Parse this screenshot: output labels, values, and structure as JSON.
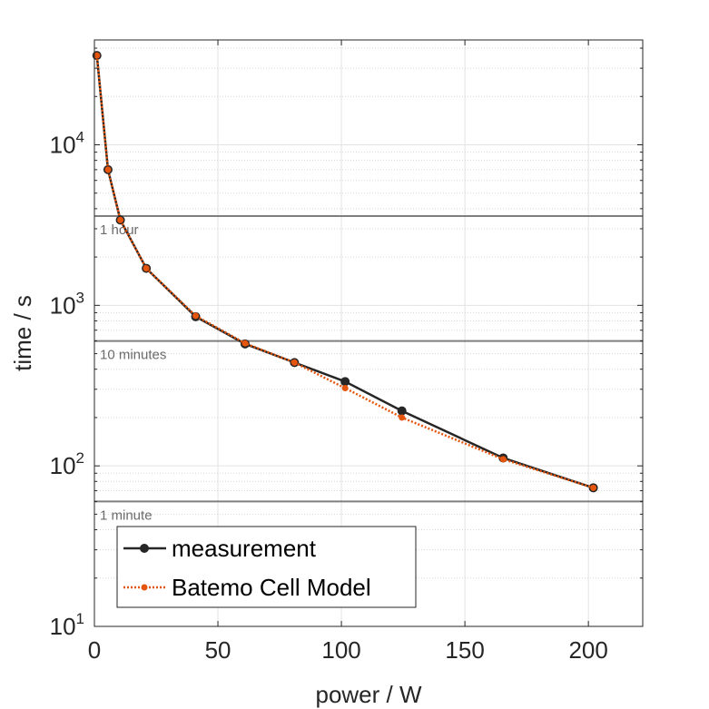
{
  "chart_data": {
    "type": "line",
    "xlabel": "power / W",
    "ylabel": "time / s",
    "xlim": [
      0,
      222
    ],
    "ylim": [
      10,
      45000
    ],
    "yscale": "log",
    "grid": true,
    "minor_grid": true,
    "x_ticks": [
      0,
      50,
      100,
      150,
      200
    ],
    "y_ticks": [
      {
        "value": 10,
        "base": "10",
        "exp": "1"
      },
      {
        "value": 100,
        "base": "10",
        "exp": "2"
      },
      {
        "value": 1000,
        "base": "10",
        "exp": "3"
      },
      {
        "value": 10000,
        "base": "10",
        "exp": "4"
      }
    ],
    "legend_position": "bottom-left",
    "series": [
      {
        "name": "measurement",
        "color": "#262626",
        "line_style": "solid",
        "marker": "circle",
        "x": [
          1,
          5.5,
          10.5,
          21,
          41,
          61,
          81,
          101.5,
          124.5,
          165.5,
          202
        ],
        "y": [
          36000,
          7000,
          3400,
          1700,
          850,
          575,
          440,
          335,
          220,
          112,
          73
        ]
      },
      {
        "name": "Batemo Cell Model",
        "color": "#e6550d",
        "line_style": "dotted",
        "marker": "dot",
        "x": [
          1,
          5.5,
          10.5,
          21,
          41,
          61,
          81,
          101.5,
          124.5,
          165.5,
          202
        ],
        "y": [
          36000,
          7000,
          3400,
          1700,
          860,
          580,
          440,
          305,
          200,
          110,
          73
        ]
      }
    ],
    "reference_lines": [
      {
        "value": 3600,
        "label": "1 hour"
      },
      {
        "value": 600,
        "label": "10 minutes"
      },
      {
        "value": 60,
        "label": "1 minute"
      }
    ]
  }
}
